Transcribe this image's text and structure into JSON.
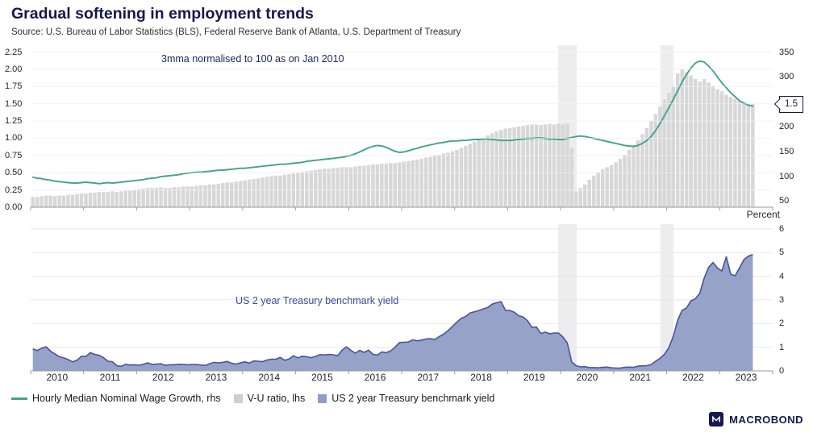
{
  "header": {
    "title": "Gradual softening in employment trends",
    "source": "Source: U.S. Bureau of Labor Statistics (BLS), Federal Reserve Bank of Atlanta, U.S. Department of Treasury"
  },
  "chart_data": [
    {
      "id": "wage-and-vu-panel",
      "type": "bar",
      "x_start": 2010,
      "xlim": [
        2010,
        2024
      ],
      "annotation": "3mma normalised to 100 as on Jan 2010",
      "callout": "1.5",
      "grid_axis": "left",
      "grid_overlay": true,
      "shading": [
        {
          "from": 2019.95,
          "to": 2020.3
        },
        {
          "from": 2021.88,
          "to": 2022.13
        }
      ],
      "axes": {
        "left": {
          "range": [
            0,
            2.35
          ],
          "ticks": [
            0,
            0.25,
            0.5,
            0.75,
            1.0,
            1.25,
            1.5,
            1.75,
            2.0,
            2.25
          ],
          "tick_labels": [
            "0.00",
            "0.25",
            "0.50",
            "0.75",
            "1.00",
            "1.25",
            "1.50",
            "1.75",
            "2.00",
            "2.25"
          ]
        },
        "right": {
          "range": [
            37.5,
            364
          ],
          "ticks": [
            50,
            100,
            150,
            200,
            250,
            300,
            350
          ],
          "tick_labels": [
            "50",
            "100",
            "150",
            "200",
            "250",
            "300",
            "350"
          ]
        }
      },
      "series": [
        {
          "name": "V-U ratio, lhs",
          "type": "bar",
          "axis": "left",
          "color": "#d7d7d7",
          "values": [
            0.15,
            0.15,
            0.16,
            0.17,
            0.17,
            0.16,
            0.17,
            0.17,
            0.18,
            0.18,
            0.19,
            0.2,
            0.2,
            0.21,
            0.21,
            0.22,
            0.22,
            0.22,
            0.23,
            0.22,
            0.23,
            0.24,
            0.24,
            0.25,
            0.26,
            0.27,
            0.28,
            0.28,
            0.28,
            0.29,
            0.28,
            0.28,
            0.29,
            0.29,
            0.3,
            0.3,
            0.3,
            0.31,
            0.32,
            0.32,
            0.33,
            0.33,
            0.34,
            0.35,
            0.36,
            0.36,
            0.37,
            0.38,
            0.39,
            0.4,
            0.41,
            0.42,
            0.43,
            0.44,
            0.45,
            0.46,
            0.46,
            0.47,
            0.48,
            0.49,
            0.5,
            0.51,
            0.52,
            0.53,
            0.54,
            0.55,
            0.56,
            0.56,
            0.57,
            0.57,
            0.58,
            0.58,
            0.58,
            0.59,
            0.6,
            0.6,
            0.61,
            0.62,
            0.62,
            0.63,
            0.63,
            0.64,
            0.64,
            0.65,
            0.66,
            0.67,
            0.68,
            0.69,
            0.7,
            0.72,
            0.73,
            0.75,
            0.76,
            0.78,
            0.79,
            0.81,
            0.83,
            0.86,
            0.89,
            0.92,
            0.95,
            0.98,
            1.01,
            1.04,
            1.07,
            1.1,
            1.12,
            1.14,
            1.15,
            1.16,
            1.17,
            1.18,
            1.19,
            1.2,
            1.2,
            1.19,
            1.2,
            1.21,
            1.2,
            1.21,
            1.2,
            1.21,
            0.86,
            0.23,
            0.28,
            0.33,
            0.4,
            0.46,
            0.51,
            0.55,
            0.58,
            0.61,
            0.65,
            0.7,
            0.76,
            0.83,
            0.9,
            0.97,
            1.06,
            1.15,
            1.25,
            1.35,
            1.46,
            1.56,
            1.66,
            1.76,
            1.94,
            2.0,
            1.96,
            1.91,
            1.86,
            1.82,
            1.86,
            1.81,
            1.76,
            1.71,
            1.68,
            1.63,
            1.6,
            1.57,
            1.54,
            1.52,
            1.5,
            1.5
          ]
        },
        {
          "name": "Hourly Median Nominal Wage Growth, rhs",
          "type": "line",
          "axis": "right",
          "color": "#43a389",
          "values": [
            98,
            96,
            95,
            93,
            92,
            90,
            89,
            88,
            87,
            86,
            86,
            87,
            88,
            87,
            86,
            85,
            86,
            87,
            86,
            87,
            88,
            89,
            90,
            91,
            92,
            93,
            95,
            96,
            97,
            99,
            100,
            101,
            102,
            103,
            105,
            106,
            107,
            108,
            108,
            109,
            110,
            111,
            112,
            112,
            113,
            114,
            115,
            116,
            116,
            117,
            118,
            119,
            120,
            121,
            122,
            123,
            124,
            124,
            125,
            126,
            127,
            128,
            130,
            131,
            132,
            133,
            134,
            135,
            136,
            137,
            138,
            140,
            142,
            145,
            149,
            153,
            157,
            160,
            162,
            161,
            158,
            154,
            150,
            148,
            149,
            151,
            154,
            156,
            159,
            161,
            163,
            165,
            167,
            168,
            170,
            171,
            171,
            172,
            172,
            173,
            174,
            174,
            175,
            175,
            174,
            173,
            172,
            172,
            172,
            173,
            174,
            175,
            176,
            176,
            177,
            177,
            176,
            175,
            175,
            174,
            174,
            176,
            178,
            180,
            181,
            180,
            178,
            176,
            174,
            172,
            170,
            168,
            166,
            164,
            162,
            161,
            160,
            162,
            166,
            172,
            180,
            192,
            206,
            222,
            238,
            255,
            272,
            290,
            305,
            318,
            328,
            332,
            330,
            322,
            312,
            300,
            288,
            278,
            268,
            260,
            252,
            247,
            243,
            241
          ]
        }
      ]
    },
    {
      "id": "treasury-panel",
      "type": "area",
      "x_start": 2010,
      "xlim": [
        2010,
        2024
      ],
      "annotation": "US 2 year Treasury benchmark yield",
      "grid_axis": "right",
      "grid_overlay": false,
      "shading": [
        {
          "from": 2019.95,
          "to": 2020.3
        },
        {
          "from": 2021.88,
          "to": 2022.13
        }
      ],
      "axes": {
        "right": {
          "title": "Percent",
          "range": [
            0,
            6.2
          ],
          "ticks": [
            0,
            1,
            2,
            3,
            4,
            5,
            6
          ],
          "tick_labels": [
            "0",
            "1",
            "2",
            "3",
            "4",
            "5",
            "6"
          ]
        }
      },
      "series": [
        {
          "name": "US 2 year Treasury benchmark yield",
          "type": "area",
          "axis": "right",
          "color": "#47549e",
          "fill": "#96a2c8",
          "values": [
            0.93,
            0.86,
            0.96,
            1.02,
            0.83,
            0.72,
            0.6,
            0.55,
            0.48,
            0.38,
            0.45,
            0.62,
            0.61,
            0.77,
            0.7,
            0.66,
            0.56,
            0.41,
            0.39,
            0.22,
            0.19,
            0.28,
            0.25,
            0.26,
            0.24,
            0.28,
            0.34,
            0.27,
            0.29,
            0.3,
            0.24,
            0.26,
            0.26,
            0.28,
            0.27,
            0.26,
            0.27,
            0.27,
            0.25,
            0.23,
            0.3,
            0.36,
            0.34,
            0.36,
            0.4,
            0.32,
            0.29,
            0.34,
            0.38,
            0.33,
            0.42,
            0.41,
            0.39,
            0.46,
            0.49,
            0.49,
            0.57,
            0.45,
            0.5,
            0.64,
            0.55,
            0.62,
            0.6,
            0.56,
            0.61,
            0.69,
            0.67,
            0.7,
            0.68,
            0.64,
            0.88,
            1.02,
            0.87,
            0.75,
            0.87,
            0.78,
            0.88,
            0.7,
            0.67,
            0.8,
            0.77,
            0.84,
            1.0,
            1.2,
            1.21,
            1.22,
            1.31,
            1.27,
            1.3,
            1.35,
            1.36,
            1.33,
            1.45,
            1.55,
            1.7,
            1.88,
            2.06,
            2.22,
            2.3,
            2.45,
            2.5,
            2.55,
            2.62,
            2.68,
            2.82,
            2.88,
            2.93,
            2.56,
            2.55,
            2.48,
            2.33,
            2.28,
            2.12,
            1.84,
            1.86,
            1.58,
            1.64,
            1.57,
            1.6,
            1.6,
            1.43,
            1.18,
            0.38,
            0.22,
            0.17,
            0.18,
            0.14,
            0.14,
            0.13,
            0.15,
            0.16,
            0.13,
            0.12,
            0.12,
            0.15,
            0.16,
            0.15,
            0.2,
            0.21,
            0.22,
            0.27,
            0.41,
            0.53,
            0.7,
            0.98,
            1.46,
            2.15,
            2.56,
            2.66,
            2.96,
            3.05,
            3.28,
            3.92,
            4.38,
            4.58,
            4.35,
            4.22,
            4.82,
            4.08,
            4.02,
            4.35,
            4.7,
            4.85,
            4.92
          ]
        }
      ]
    }
  ],
  "x_axis": {
    "start_year": 2010,
    "labels": [
      "2010",
      "2011",
      "2012",
      "2013",
      "2014",
      "2015",
      "2016",
      "2017",
      "2018",
      "2019",
      "2020",
      "2021",
      "2022",
      "2023"
    ]
  },
  "legend": {
    "items": [
      {
        "label": "Hourly Median Nominal Wage Growth, rhs",
        "swatch": "line",
        "color": "#43a389"
      },
      {
        "label": "V-U ratio, lhs",
        "swatch": "square",
        "color": "#cfcfcf"
      },
      {
        "label": "US 2 year Treasury benchmark yield",
        "swatch": "square",
        "color": "#8f9cc6"
      }
    ]
  },
  "colors": {
    "title_navy": "#17174b",
    "shading_band": "#ededed",
    "axis_text": "#262626"
  },
  "branding": {
    "name": "MACROBOND"
  }
}
